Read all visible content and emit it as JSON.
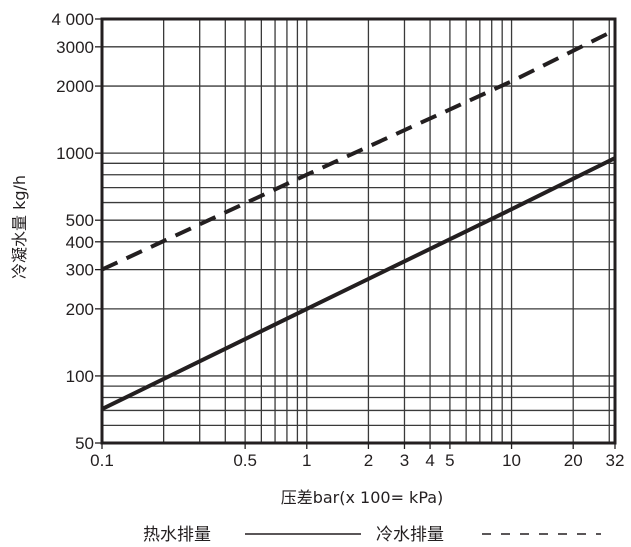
{
  "chart_data": {
    "type": "line",
    "title": "",
    "xlabel": "压差bar(x 100= kPa)",
    "ylabel": "冷凝水量 kg/h",
    "xscale": "log",
    "yscale": "log",
    "xlim": [
      0.1,
      32
    ],
    "ylim": [
      50,
      4000
    ],
    "grid": true,
    "x_ticks": [
      0.1,
      0.5,
      1,
      2,
      3,
      4,
      5,
      10,
      20,
      32
    ],
    "x_tick_labels": [
      "0.1",
      "0.5",
      "1",
      "2",
      "3",
      "4",
      "5",
      "10",
      "20",
      "32"
    ],
    "x_gridlines": [
      0.2,
      0.3,
      0.4,
      0.5,
      0.6,
      0.7,
      0.8,
      0.9,
      1,
      2,
      3,
      4,
      5,
      6,
      7,
      8,
      9,
      10,
      20,
      30
    ],
    "y_ticks": [
      50,
      100,
      200,
      300,
      400,
      500,
      1000,
      2000,
      3000,
      4000
    ],
    "y_tick_labels": [
      "50",
      "100",
      "200",
      "300",
      "400",
      "500",
      "1000",
      "2000",
      "3000",
      "4 000"
    ],
    "y_gridlines": [
      60,
      70,
      80,
      90,
      100,
      200,
      300,
      400,
      500,
      600,
      700,
      800,
      900,
      1000,
      2000,
      3000
    ],
    "legend_position": "bottom",
    "series": [
      {
        "name": "热水排量",
        "style": "solid",
        "color": "#231f20",
        "x": [
          0.1,
          1,
          10,
          32
        ],
        "values": [
          71,
          200,
          560,
          950
        ]
      },
      {
        "name": "冷水排量",
        "style": "dashed",
        "color": "#231f20",
        "x": [
          0.1,
          1,
          10,
          32
        ],
        "values": [
          300,
          800,
          2100,
          3570
        ]
      }
    ]
  },
  "colors": {
    "ink": "#231f20",
    "grid": "#3a3a3a",
    "background": "#ffffff"
  }
}
